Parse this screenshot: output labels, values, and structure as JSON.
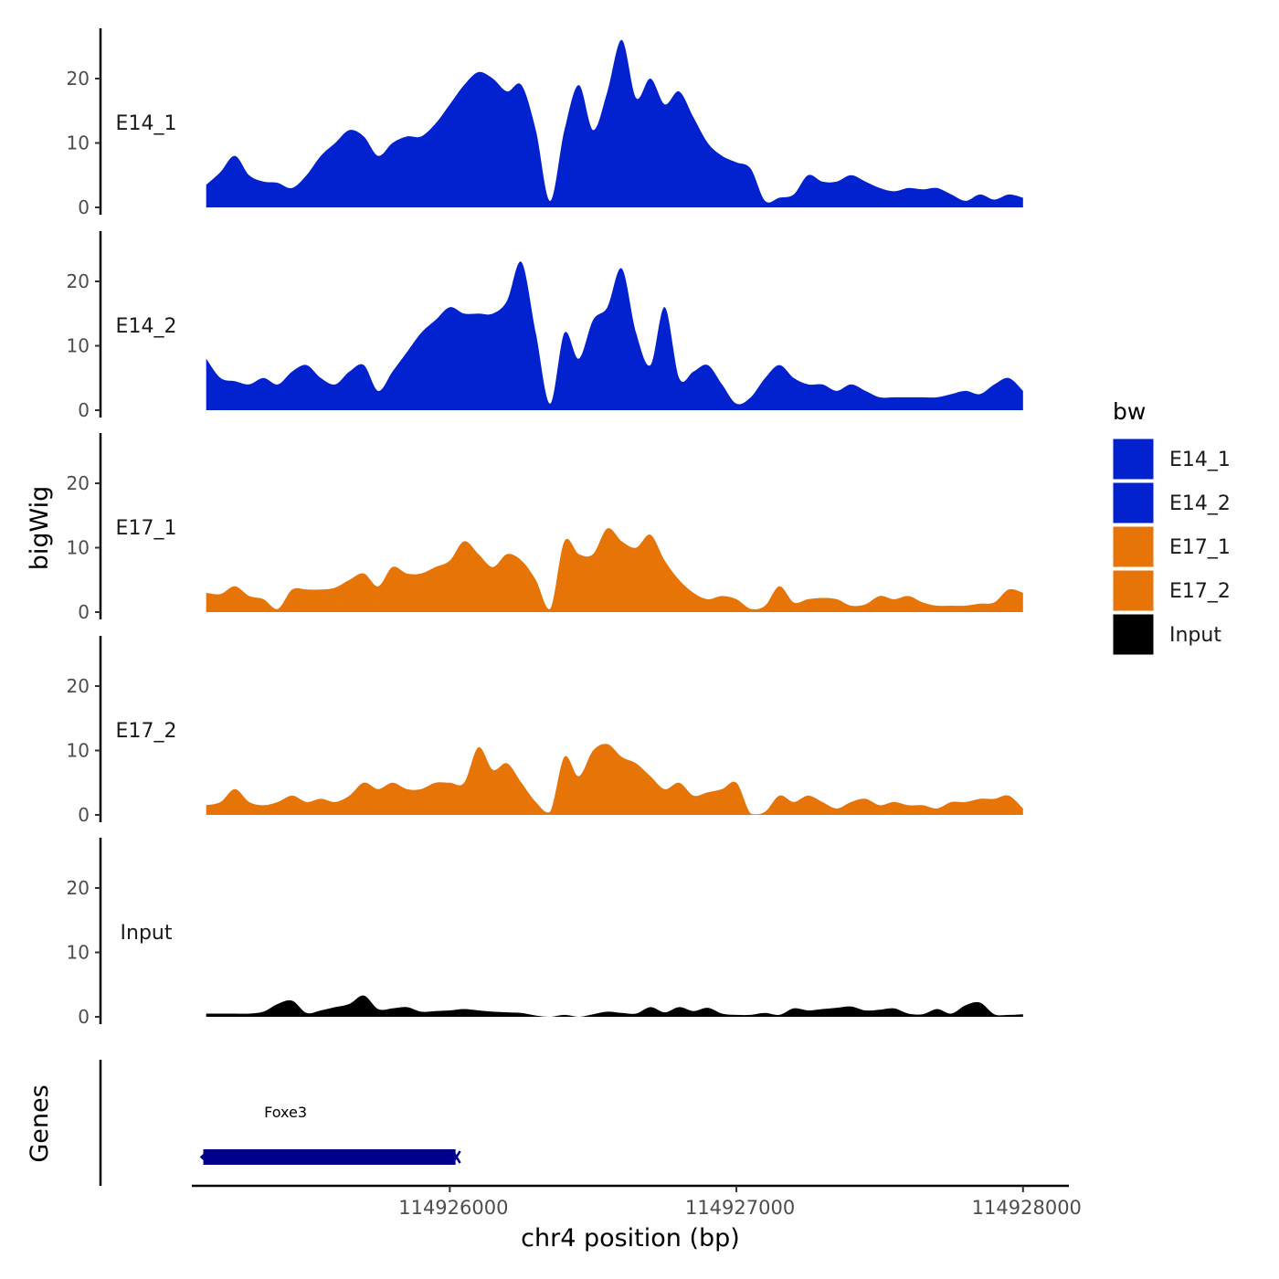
{
  "chart_data": {
    "type": "area",
    "title": "",
    "xlabel": "chr4 position (bp)",
    "ylabel": "bigWig",
    "genes_label": "Genes",
    "xlim": [
      114925100,
      114928160
    ],
    "ylim": [
      0,
      28
    ],
    "x_ticks": [
      114926000,
      114927000,
      114928000
    ],
    "y_ticks": [
      0,
      10,
      20
    ],
    "legend": {
      "title": "bw",
      "position": "right",
      "entries": [
        {
          "label": "E14_1",
          "color": "#0221cf"
        },
        {
          "label": "E14_2",
          "color": "#0221cf"
        },
        {
          "label": "E17_1",
          "color": "#e77407"
        },
        {
          "label": "E17_2",
          "color": "#e77407"
        },
        {
          "label": "Input",
          "color": "#000000"
        }
      ]
    },
    "x": [
      114925150,
      114925200,
      114925250,
      114925300,
      114925350,
      114925400,
      114925450,
      114925500,
      114925550,
      114925600,
      114925650,
      114925700,
      114925750,
      114925800,
      114925850,
      114925900,
      114925950,
      114926000,
      114926050,
      114926100,
      114926150,
      114926200,
      114926250,
      114926300,
      114926350,
      114926400,
      114926450,
      114926500,
      114926550,
      114926600,
      114926650,
      114926700,
      114926750,
      114926800,
      114926850,
      114926900,
      114926950,
      114927000,
      114927050,
      114927100,
      114927150,
      114927200,
      114927250,
      114927300,
      114927350,
      114927400,
      114927450,
      114927500,
      114927550,
      114927600,
      114927650,
      114927700,
      114927750,
      114927800,
      114927850,
      114927900,
      114927950,
      114928000
    ],
    "series": [
      {
        "name": "E14_1",
        "color": "#0221cf",
        "values": [
          3.5,
          5.5,
          8,
          5,
          4,
          3.8,
          3,
          5,
          8,
          10,
          12,
          11,
          8,
          10,
          11,
          11,
          13,
          16,
          19,
          21,
          20,
          18,
          19,
          12,
          1,
          12,
          19,
          12,
          18,
          26,
          17,
          20,
          16,
          18,
          14,
          10,
          8,
          7,
          6,
          1,
          1.5,
          2,
          5,
          4,
          4,
          5,
          4,
          3,
          2.5,
          3,
          2.8,
          3,
          2,
          1,
          2,
          1.2,
          2,
          1.5
        ]
      },
      {
        "name": "E14_2",
        "color": "#0221cf",
        "values": [
          8,
          5,
          4.5,
          4,
          5,
          4,
          6,
          7,
          5,
          4,
          6,
          7,
          3,
          6,
          9,
          12,
          14,
          16,
          15,
          15,
          15,
          17,
          23,
          12,
          1,
          12,
          8,
          14,
          16,
          22,
          12,
          7,
          16,
          5,
          6,
          7,
          4,
          1,
          2,
          5,
          7,
          5,
          4,
          4,
          3,
          4,
          3,
          2,
          2,
          2,
          2,
          2,
          2.5,
          3,
          2.5,
          4,
          5,
          3
        ]
      },
      {
        "name": "E17_1",
        "color": "#e77407",
        "values": [
          3,
          2.8,
          4,
          2.5,
          2,
          0.5,
          3.5,
          3.5,
          3.5,
          3.8,
          5,
          6,
          4,
          7,
          6,
          6,
          7,
          8,
          11,
          9,
          7,
          9,
          8,
          5,
          0.5,
          11,
          9,
          9,
          13,
          11,
          10,
          12,
          8,
          5,
          3,
          2,
          2.5,
          2,
          0.5,
          1,
          4,
          1.5,
          2,
          2.2,
          2,
          1,
          1.2,
          2.5,
          2,
          2.5,
          1.5,
          1,
          1,
          1,
          1.3,
          1.5,
          3.5,
          3
        ]
      },
      {
        "name": "E17_2",
        "color": "#e77407",
        "values": [
          1.5,
          2,
          4,
          2,
          1.5,
          2,
          3,
          2,
          2.5,
          2,
          3,
          5,
          4,
          5,
          4,
          4,
          5,
          5,
          5,
          10.5,
          7,
          8,
          5,
          2,
          0.5,
          9,
          6,
          10,
          11,
          9,
          8,
          6,
          4,
          5,
          3,
          3.5,
          4,
          5,
          0.2,
          0.5,
          3,
          2,
          3,
          2,
          1,
          2,
          2.5,
          1.5,
          2,
          1.5,
          1.5,
          1,
          2,
          2,
          2.5,
          2.5,
          3,
          1
        ]
      },
      {
        "name": "Input",
        "color": "#000000",
        "values": [
          0.5,
          0.5,
          0.5,
          0.5,
          0.8,
          2,
          2.5,
          0.6,
          1,
          1.5,
          2,
          3.3,
          1.2,
          1.3,
          1.5,
          0.8,
          0.9,
          1,
          1.2,
          1,
          0.8,
          0.7,
          0.6,
          0.2,
          0,
          0.3,
          0,
          0.4,
          0.8,
          0.6,
          0.5,
          1.5,
          0.7,
          1.5,
          0.9,
          1.4,
          0.5,
          0.3,
          0.3,
          0.6,
          0.3,
          1.3,
          1,
          1.2,
          1.4,
          1.6,
          1,
          1.1,
          1.3,
          0.5,
          0.4,
          1.2,
          0.5,
          1.8,
          2.2,
          0.4,
          0.3,
          0.4
        ]
      }
    ],
    "genes": [
      {
        "name": "Foxe3",
        "start": 114925140,
        "end": 114926020
      }
    ]
  }
}
